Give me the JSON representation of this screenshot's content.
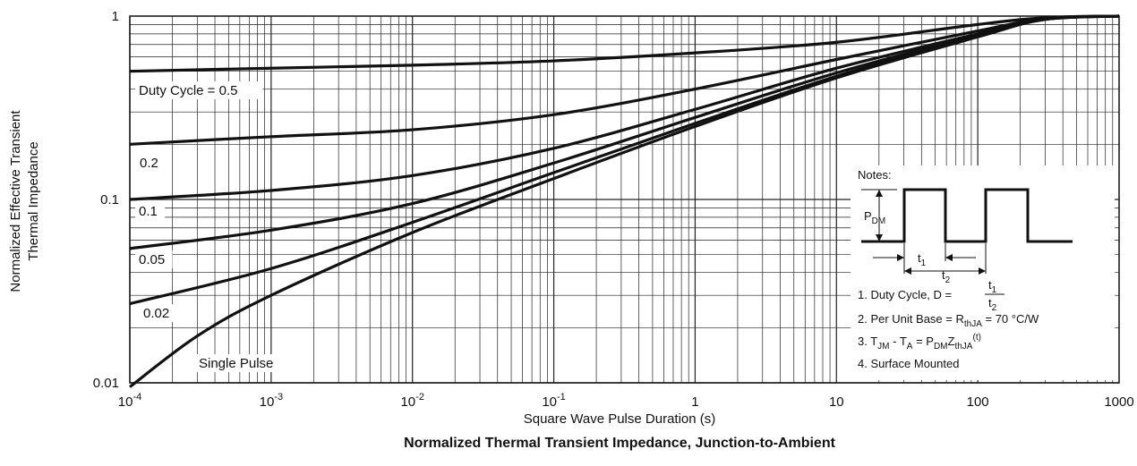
{
  "chart_data": {
    "type": "line",
    "title": "Normalized Thermal Transient Impedance, Junction-to-Ambient",
    "xlabel": "Square Wave Pulse Duration (s)",
    "ylabel_line1": "Normalized Effective Transient",
    "ylabel_line2": "Thermal Impedance",
    "x_scale": "log",
    "y_scale": "log",
    "xlim": [
      0.0001,
      1000
    ],
    "ylim": [
      0.01,
      1
    ],
    "grid": true,
    "x_ticks": [
      {
        "value": 0.0001,
        "base": "10",
        "exp": "-4"
      },
      {
        "value": 0.001,
        "base": "10",
        "exp": "-3"
      },
      {
        "value": 0.01,
        "base": "10",
        "exp": "-2"
      },
      {
        "value": 0.1,
        "base": "10",
        "exp": "-1"
      },
      {
        "value": 1,
        "base": "1",
        "exp": ""
      },
      {
        "value": 10,
        "base": "10",
        "exp": ""
      },
      {
        "value": 100,
        "base": "100",
        "exp": ""
      },
      {
        "value": 1000,
        "base": "1000",
        "exp": ""
      }
    ],
    "y_ticks": [
      {
        "value": 1,
        "label": "1"
      },
      {
        "value": 0.1,
        "label": "0.1"
      },
      {
        "value": 0.01,
        "label": "0.01"
      }
    ],
    "series": [
      {
        "name": "Duty Cycle = 0.5",
        "x": [
          0.0001,
          0.001,
          0.01,
          0.1,
          1,
          10,
          100,
          300,
          1000
        ],
        "y": [
          0.5,
          0.52,
          0.54,
          0.57,
          0.63,
          0.72,
          0.9,
          0.98,
          1.0
        ]
      },
      {
        "name": "0.2",
        "x": [
          0.0001,
          0.001,
          0.01,
          0.1,
          1,
          10,
          100,
          300,
          1000
        ],
        "y": [
          0.2,
          0.22,
          0.24,
          0.29,
          0.4,
          0.58,
          0.83,
          0.97,
          1.0
        ]
      },
      {
        "name": "0.1",
        "x": [
          0.0001,
          0.001,
          0.01,
          0.1,
          1,
          10,
          100,
          300,
          1000
        ],
        "y": [
          0.1,
          0.112,
          0.135,
          0.19,
          0.31,
          0.52,
          0.8,
          0.97,
          1.0
        ]
      },
      {
        "name": "0.05",
        "x": [
          0.0001,
          0.001,
          0.01,
          0.1,
          1,
          10,
          100,
          300,
          1000
        ],
        "y": [
          0.054,
          0.068,
          0.095,
          0.158,
          0.28,
          0.49,
          0.79,
          0.96,
          1.0
        ]
      },
      {
        "name": "0.02",
        "x": [
          0.0001,
          0.001,
          0.01,
          0.1,
          1,
          10,
          100,
          300,
          1000
        ],
        "y": [
          0.027,
          0.042,
          0.075,
          0.14,
          0.26,
          0.47,
          0.78,
          0.96,
          1.0
        ]
      },
      {
        "name": "Single Pulse",
        "x": [
          0.0001,
          0.0003,
          0.001,
          0.01,
          0.1,
          1,
          10,
          100,
          300,
          1000
        ],
        "y": [
          0.0095,
          0.018,
          0.03,
          0.066,
          0.13,
          0.25,
          0.46,
          0.77,
          0.96,
          1.0
        ]
      }
    ],
    "curve_labels": [
      "Duty Cycle = 0.5",
      "0.2",
      "0.1",
      "0.05",
      "0.02",
      "Single Pulse"
    ],
    "notes": {
      "heading": "Notes:",
      "pdm_main": "P",
      "pdm_sub": "DM",
      "t1_main": "t",
      "t1_sub": "1",
      "t2_main": "t",
      "t2_sub": "2",
      "note1": "1. Duty Cycle, D = ",
      "note1_num_main": "t",
      "note1_num_sub": "1",
      "note1_den_main": "t",
      "note1_den_sub": "2",
      "note2_a": "2. Per Unit Base = R",
      "note2_sub": "thJA",
      "note2_b": " = 70 °C/W",
      "note3_a": "3. T",
      "note3_sub1": "JM",
      "note3_b": " - T",
      "note3_sub2": "A",
      "note3_c": " = P",
      "note3_sub3": "DM",
      "note3_d": "Z",
      "note3_sub4": "thJA",
      "note3_sup": "(t)",
      "note4": "4. Surface Mounted"
    }
  }
}
